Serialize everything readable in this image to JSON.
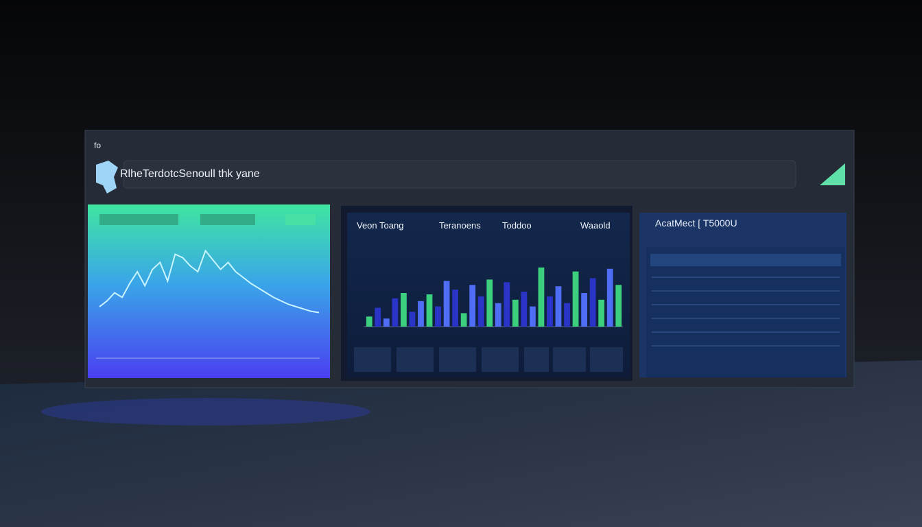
{
  "header": {
    "corner_label": "fo",
    "title": "RlheTerdotcSenoull thk yane"
  },
  "left_panel": {
    "chart_data": {
      "type": "line",
      "color": "#c8f5ff",
      "values": [
        40,
        45,
        52,
        48,
        60,
        70,
        58,
        72,
        78,
        62,
        85,
        82,
        75,
        70,
        88,
        80,
        72,
        78,
        70,
        65,
        60,
        56,
        52,
        48,
        45,
        42,
        40,
        38,
        36,
        35
      ],
      "ylim": [
        0,
        100
      ]
    }
  },
  "middle_panel": {
    "headings": [
      "Veon Toang",
      "Teranoens",
      "Toddoo",
      "Waaold"
    ],
    "chart_data": {
      "type": "bar",
      "values": [
        15,
        28,
        12,
        42,
        50,
        22,
        38,
        48,
        30,
        68,
        55,
        20,
        62,
        45,
        70,
        35,
        66,
        40,
        52,
        30,
        88,
        45,
        60,
        35,
        82,
        50,
        72,
        40,
        86,
        62
      ],
      "colors": [
        "#3ccf7e",
        "#2a35c8",
        "#4f6df5",
        "#2a35c8",
        "#3ccf7e",
        "#2a35c8",
        "#4f6df5",
        "#3ccf7e",
        "#2a35c8",
        "#4f6df5",
        "#2a35c8",
        "#3ccf7e",
        "#4f6df5",
        "#2a35c8",
        "#3ccf7e",
        "#4f6df5",
        "#2a35c8",
        "#3ccf7e",
        "#2a35c8",
        "#4f6df5",
        "#3ccf7e",
        "#2a35c8",
        "#4f6df5",
        "#2a35c8",
        "#3ccf7e",
        "#4f6df5",
        "#2a35c8",
        "#3ccf7e",
        "#4f6df5",
        "#3ccf7e"
      ],
      "ylim": [
        0,
        100
      ]
    }
  },
  "right_panel": {
    "title": "AcatMect [ T5000U"
  }
}
